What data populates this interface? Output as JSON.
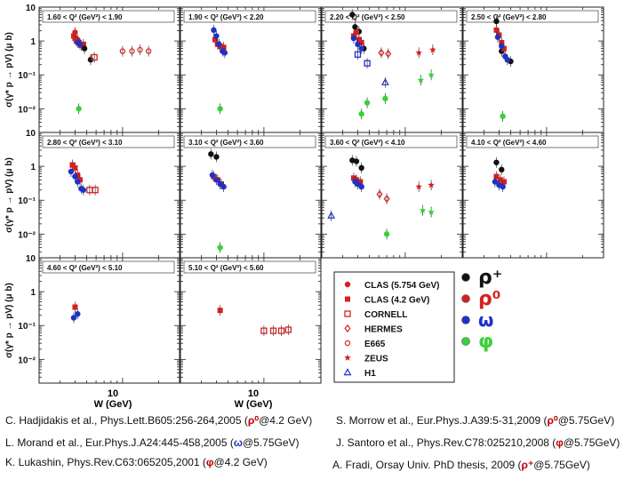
{
  "chart_data": {
    "type": "scatter",
    "title": "",
    "ylabel": "σ(γ* p → pV) (μ b)",
    "xlabel": "W (GeV)",
    "x_scale": "log",
    "y_scale": "log",
    "xlim": [
      2.0,
      30.0
    ],
    "ylim": [
      0.002,
      10
    ],
    "x_tick_labels": [
      "10"
    ],
    "y_tick_labels": [
      "10",
      "1",
      "10⁻¹",
      "10⁻²"
    ],
    "panels": [
      {
        "label": "1.60 < Q² (GeV²) < 1.90",
        "series": [
          {
            "name": "ρ⁰ CLAS(4.2)",
            "color": "#d62020",
            "marker": "square",
            "points": [
              [
                3.9,
                1.4
              ],
              [
                4.0,
                1.2
              ],
              [
                4.1,
                1.0
              ],
              [
                4.3,
                0.9
              ],
              [
                4.5,
                0.75
              ],
              [
                4.7,
                0.8
              ]
            ]
          },
          {
            "name": "ρ⁰ CLAS(5.754)",
            "color": "#d62020",
            "marker": "dot",
            "points": [
              [
                4.0,
                1.8
              ],
              [
                4.2,
                1.1
              ]
            ]
          },
          {
            "name": "ω",
            "color": "#2030c8",
            "marker": "dot",
            "points": [
              [
                4.2,
                0.9
              ],
              [
                4.4,
                0.8
              ]
            ]
          },
          {
            "name": "ρ⁺",
            "color": "#111111",
            "marker": "dot",
            "points": [
              [
                4.8,
                0.6
              ],
              [
                5.4,
                0.28
              ]
            ]
          },
          {
            "name": "ρ⁰ CORNELL",
            "color": "#d62020",
            "marker": "open-square",
            "points": [
              [
                5.8,
                0.33
              ]
            ]
          },
          {
            "name": "ρ⁰ E665",
            "color": "#d62020",
            "marker": "open-circle",
            "points": [
              [
                10,
                0.5
              ],
              [
                12,
                0.5
              ],
              [
                14,
                0.55
              ],
              [
                16.5,
                0.5
              ]
            ]
          },
          {
            "name": "φ",
            "color": "#3ad03a",
            "marker": "dot",
            "points": [
              [
                4.3,
                0.01
              ]
            ]
          }
        ]
      },
      {
        "label": "1.90 < Q² (GeV²) < 2.20",
        "series": [
          {
            "name": "ρ⁰ CLAS",
            "color": "#d62020",
            "marker": "square",
            "points": [
              [
                3.9,
                1.1
              ],
              [
                4.1,
                0.8
              ],
              [
                4.3,
                0.7
              ],
              [
                4.6,
                0.65
              ]
            ]
          },
          {
            "name": "ω",
            "color": "#2030c8",
            "marker": "dot",
            "points": [
              [
                3.8,
                2.1
              ],
              [
                4.0,
                1.4
              ],
              [
                4.2,
                0.8
              ],
              [
                4.5,
                0.5
              ],
              [
                4.7,
                0.45
              ]
            ]
          },
          {
            "name": "φ",
            "color": "#3ad03a",
            "marker": "dot",
            "points": [
              [
                4.3,
                0.01
              ]
            ]
          }
        ]
      },
      {
        "label": "2.20 < Q² (GeV²) < 2.50",
        "series": [
          {
            "name": "ρ⁺",
            "color": "#111111",
            "marker": "dot",
            "points": [
              [
                3.6,
                6.0
              ],
              [
                3.8,
                2.6
              ],
              [
                4.1,
                1.9
              ],
              [
                4.5,
                0.6
              ]
            ]
          },
          {
            "name": "ρ⁰ CLAS",
            "color": "#d62020",
            "marker": "square",
            "points": [
              [
                3.7,
                1.4
              ],
              [
                3.9,
                1.8
              ],
              [
                4.1,
                1.1
              ],
              [
                4.3,
                0.9
              ]
            ]
          },
          {
            "name": "ω",
            "color": "#2030c8",
            "marker": "dot",
            "points": [
              [
                3.7,
                1.2
              ],
              [
                4.0,
                0.8
              ],
              [
                4.3,
                0.6
              ]
            ]
          },
          {
            "name": "ρ⁰ CORNELL",
            "color": "#2030c8",
            "marker": "open-square",
            "points": [
              [
                4.0,
                0.4
              ],
              [
                4.8,
                0.22
              ]
            ]
          },
          {
            "name": "ρ⁰ HERMES",
            "color": "#d62020",
            "marker": "open-diamond",
            "points": [
              [
                6.3,
                0.45
              ],
              [
                7.2,
                0.42
              ]
            ]
          },
          {
            "name": "ρ⁰ ZEUS",
            "color": "#d62020",
            "marker": "star",
            "points": [
              [
                13,
                0.45
              ],
              [
                17,
                0.55
              ]
            ]
          },
          {
            "name": "ω H1",
            "color": "#2030c8",
            "marker": "open-triangle",
            "points": [
              [
                6.8,
                0.06
              ]
            ]
          },
          {
            "name": "φ",
            "color": "#3ad03a",
            "marker": "dot",
            "points": [
              [
                4.3,
                0.007
              ],
              [
                4.8,
                0.015
              ],
              [
                6.8,
                0.02
              ]
            ]
          },
          {
            "name": "φ ZEUS",
            "color": "#3ad03a",
            "marker": "star",
            "points": [
              [
                13.5,
                0.07
              ],
              [
                16.5,
                0.1
              ]
            ]
          }
        ]
      },
      {
        "label": "2.50 < Q² (GeV²) < 2.80",
        "series": [
          {
            "name": "ρ⁺",
            "color": "#111111",
            "marker": "dot",
            "points": [
              [
                3.8,
                3.8
              ],
              [
                4.2,
                0.5
              ],
              [
                5.0,
                0.25
              ]
            ]
          },
          {
            "name": "ρ⁰ CLAS",
            "color": "#d62020",
            "marker": "square",
            "points": [
              [
                3.8,
                2.1
              ],
              [
                4.0,
                1.5
              ],
              [
                4.2,
                0.9
              ],
              [
                4.4,
                0.6
              ]
            ]
          },
          {
            "name": "ω",
            "color": "#2030c8",
            "marker": "dot",
            "points": [
              [
                3.9,
                1.3
              ],
              [
                4.2,
                0.7
              ],
              [
                4.5,
                0.35
              ],
              [
                4.7,
                0.28
              ]
            ]
          },
          {
            "name": "φ",
            "color": "#3ad03a",
            "marker": "dot",
            "points": [
              [
                4.3,
                0.006
              ]
            ]
          }
        ]
      },
      {
        "label": "2.80 < Q² (GeV²) < 3.10",
        "series": [
          {
            "name": "ρ⁰ CLAS",
            "color": "#d62020",
            "marker": "square",
            "points": [
              [
                3.8,
                1.1
              ],
              [
                4.0,
                0.9
              ],
              [
                4.2,
                0.55
              ],
              [
                4.4,
                0.4
              ]
            ]
          },
          {
            "name": "ω",
            "color": "#2030c8",
            "marker": "dot",
            "points": [
              [
                3.7,
                0.7
              ],
              [
                4.0,
                0.5
              ],
              [
                4.2,
                0.35
              ],
              [
                4.5,
                0.22
              ],
              [
                4.7,
                0.2
              ]
            ]
          },
          {
            "name": "ρ⁰ CORNELL",
            "color": "#d62020",
            "marker": "open-square",
            "points": [
              [
                5.3,
                0.2
              ],
              [
                5.9,
                0.2
              ]
            ]
          }
        ]
      },
      {
        "label": "3.10 < Q² (GeV²) < 3.60",
        "series": [
          {
            "name": "ρ⁺",
            "color": "#111111",
            "marker": "dot",
            "points": [
              [
                3.6,
                2.3
              ],
              [
                4.0,
                1.9
              ]
            ]
          },
          {
            "name": "ρ⁰ CLAS",
            "color": "#d62020",
            "marker": "square",
            "points": [
              [
                3.8,
                0.5
              ],
              [
                4.1,
                0.4
              ],
              [
                4.4,
                0.3
              ]
            ]
          },
          {
            "name": "ω",
            "color": "#2030c8",
            "marker": "dot",
            "points": [
              [
                3.7,
                0.55
              ],
              [
                4.0,
                0.4
              ],
              [
                4.3,
                0.3
              ],
              [
                4.6,
                0.25
              ]
            ]
          },
          {
            "name": "φ",
            "color": "#3ad03a",
            "marker": "dot",
            "points": [
              [
                4.3,
                0.004
              ]
            ]
          }
        ]
      },
      {
        "label": "3.60 < Q² (GeV²) < 4.10",
        "series": [
          {
            "name": "ρ⁺",
            "color": "#111111",
            "marker": "dot",
            "points": [
              [
                3.6,
                1.5
              ],
              [
                3.9,
                1.4
              ],
              [
                4.3,
                0.9
              ]
            ]
          },
          {
            "name": "ρ⁰ CLAS",
            "color": "#d62020",
            "marker": "square",
            "points": [
              [
                3.7,
                0.45
              ],
              [
                3.9,
                0.4
              ],
              [
                4.2,
                0.35
              ]
            ]
          },
          {
            "name": "ω",
            "color": "#2030c8",
            "marker": "dot",
            "points": [
              [
                3.8,
                0.35
              ],
              [
                4.0,
                0.3
              ],
              [
                4.3,
                0.25
              ]
            ]
          },
          {
            "name": "ρ⁰ HERMES",
            "color": "#d62020",
            "marker": "open-diamond",
            "points": [
              [
                6.1,
                0.15
              ],
              [
                7.0,
                0.11
              ]
            ]
          },
          {
            "name": "ρ⁰ ZEUS",
            "color": "#d62020",
            "marker": "star",
            "points": [
              [
                13,
                0.25
              ],
              [
                16.5,
                0.28
              ]
            ]
          },
          {
            "name": "ω H1",
            "color": "#2030c8",
            "marker": "open-triangle",
            "points": [
              [
                2.4,
                0.035
              ]
            ]
          },
          {
            "name": "φ",
            "color": "#3ad03a",
            "marker": "dot",
            "points": [
              [
                7.0,
                0.01
              ]
            ]
          },
          {
            "name": "φ ZEUS",
            "color": "#3ad03a",
            "marker": "star",
            "points": [
              [
                14,
                0.05
              ],
              [
                16.5,
                0.045
              ]
            ]
          }
        ]
      },
      {
        "label": "4.10 < Q² (GeV²) < 4.60",
        "series": [
          {
            "name": "ρ⁺",
            "color": "#111111",
            "marker": "dot",
            "points": [
              [
                3.8,
                1.3
              ],
              [
                4.2,
                0.8
              ]
            ]
          },
          {
            "name": "ρ⁰ CLAS",
            "color": "#d62020",
            "marker": "square",
            "points": [
              [
                3.8,
                0.5
              ],
              [
                4.1,
                0.4
              ],
              [
                4.4,
                0.35
              ]
            ]
          },
          {
            "name": "ω",
            "color": "#2030c8",
            "marker": "dot",
            "points": [
              [
                3.7,
                0.35
              ],
              [
                4.0,
                0.28
              ],
              [
                4.3,
                0.25
              ]
            ]
          }
        ]
      },
      {
        "label": "4.60 < Q² (GeV²) < 5.10",
        "series": [
          {
            "name": "ρ⁰ CLAS",
            "color": "#d62020",
            "marker": "square",
            "points": [
              [
                4.0,
                0.35
              ]
            ]
          },
          {
            "name": "ω",
            "color": "#2030c8",
            "marker": "dot",
            "points": [
              [
                3.9,
                0.17
              ],
              [
                4.2,
                0.22
              ]
            ]
          }
        ]
      },
      {
        "label": "5.10 < Q² (GeV²) < 5.60",
        "series": [
          {
            "name": "ρ⁰ CLAS",
            "color": "#d62020",
            "marker": "square",
            "points": [
              [
                4.3,
                0.28
              ]
            ]
          },
          {
            "name": "ρ⁰ HERMES",
            "color": "#d62020",
            "marker": "open-square",
            "points": [
              [
                10,
                0.07
              ],
              [
                12,
                0.07
              ],
              [
                14,
                0.07
              ],
              [
                16,
                0.075
              ]
            ]
          }
        ]
      }
    ],
    "legend": {
      "placement": "bottom-right",
      "entries": [
        {
          "label": "CLAS (5.754 GeV)",
          "marker": "dot"
        },
        {
          "label": "CLAS (4.2 GeV)",
          "marker": "square"
        },
        {
          "label": "CORNELL",
          "marker": "open-square"
        },
        {
          "label": "HERMES",
          "marker": "open-diamond"
        },
        {
          "label": "E665",
          "marker": "open-circle"
        },
        {
          "label": "ZEUS",
          "marker": "star"
        },
        {
          "label": "H1",
          "marker": "open-triangle"
        }
      ],
      "meson_entries": [
        {
          "label": "ρ⁺",
          "color": "#111111"
        },
        {
          "label": "ρ⁰",
          "color": "#d62020"
        },
        {
          "label": "ω",
          "color": "#2030c8"
        },
        {
          "label": "φ",
          "color": "#3ad03a"
        }
      ]
    }
  },
  "citations": [
    {
      "text": "C. Hadjidakis et al., Phys.Lett.B605:256-264,2005 (",
      "symbol": "ρ⁰",
      "tail": "@4.2 GeV)"
    },
    {
      "text": "S. Morrow et al., Eur.Phys.J.A39:5-31,2009 (",
      "symbol": "ρ⁰",
      "tail": "@5.75GeV)"
    },
    {
      "text": "L. Morand et al., Eur.Phys.J.A24:445-458,2005 (",
      "symbol": "ω",
      "tail": "@5.75GeV)"
    },
    {
      "text": "J. Santoro et al., Phys.Rev.C78:025210,2008 (",
      "symbol": "φ",
      "tail": "@5.75GeV)"
    },
    {
      "text": "K. Lukashin, Phys.Rev.C63:065205,2001 (",
      "symbol": "φ",
      "tail": "@4.2 GeV)"
    },
    {
      "text": "A. Fradi, Orsay Univ. PhD thesis, 2009 (",
      "symbol": "ρ⁺",
      "tail": "@5.75GeV)"
    }
  ]
}
